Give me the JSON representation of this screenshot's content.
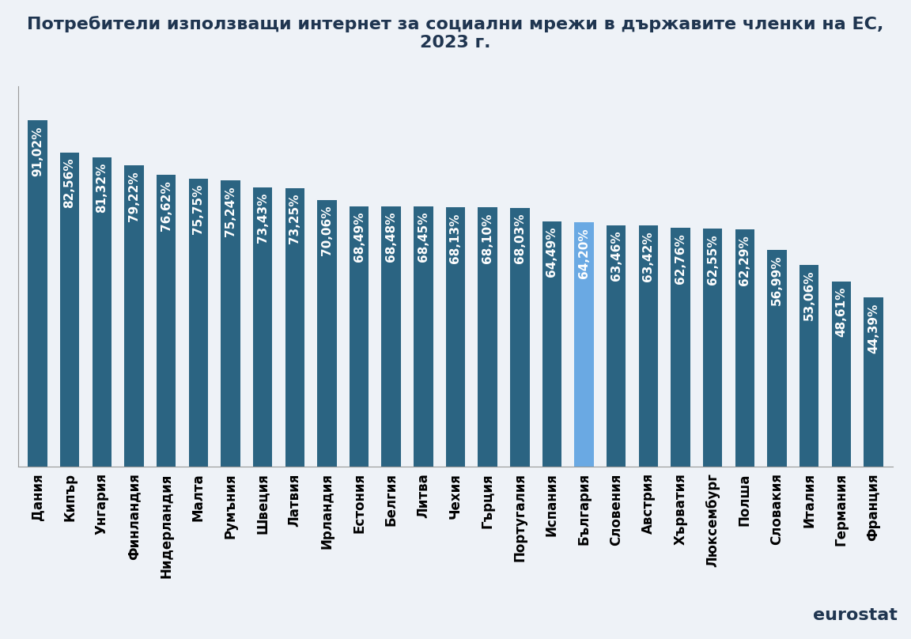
{
  "chart_data": {
    "type": "bar",
    "title": "Потребители използващи интернет за социални мрежи в държавите членки на ЕС, 2023 г.",
    "categories": [
      "Дания",
      "Кипър",
      "Унгария",
      "Финландия",
      "Нидерландия",
      "Малта",
      "Румъния",
      "Швеция",
      "Латвия",
      "Ирландия",
      "Естония",
      "Белгия",
      "Литва",
      "Чехия",
      "Гърция",
      "Португалия",
      "Испания",
      "България",
      "Словения",
      "Австрия",
      "Хърватия",
      "Люксембург",
      "Полша",
      "Словакия",
      "Италия",
      "Германия",
      "Франция"
    ],
    "values": [
      91.02,
      82.56,
      81.32,
      79.22,
      76.62,
      75.75,
      75.24,
      73.43,
      73.25,
      70.06,
      68.49,
      68.48,
      68.45,
      68.13,
      68.1,
      68.03,
      64.49,
      64.2,
      63.46,
      63.42,
      62.76,
      62.55,
      62.29,
      56.99,
      53.06,
      48.61,
      44.39
    ],
    "value_labels": [
      "91,02%",
      "82,56%",
      "81,32%",
      "79,22%",
      "76,62%",
      "75,75%",
      "75,24%",
      "73,43%",
      "73,25%",
      "70,06%",
      "68,49%",
      "68,48%",
      "68,45%",
      "68,13%",
      "68,10%",
      "68,03%",
      "64,49%",
      "64,20%",
      "63,46%",
      "63,42%",
      "62,76%",
      "62,55%",
      "62,29%",
      "56,99%",
      "53,06%",
      "48,61%",
      "44,39%"
    ],
    "colors": [
      "#2b6482",
      "#2b6482",
      "#2b6482",
      "#2b6482",
      "#2b6482",
      "#2b6482",
      "#2b6482",
      "#2b6482",
      "#2b6482",
      "#2b6482",
      "#2b6482",
      "#2b6482",
      "#2b6482",
      "#2b6482",
      "#2b6482",
      "#2b6482",
      "#2b6482",
      "#6aa9e3",
      "#2b6482",
      "#2b6482",
      "#2b6482",
      "#2b6482",
      "#2b6482",
      "#2b6482",
      "#2b6482",
      "#2b6482",
      "#2b6482"
    ],
    "ylim": [
      0,
      100
    ],
    "grid": false,
    "data_labels": true,
    "tick_labels": "x",
    "annotations": [
      "eurostat"
    ]
  }
}
